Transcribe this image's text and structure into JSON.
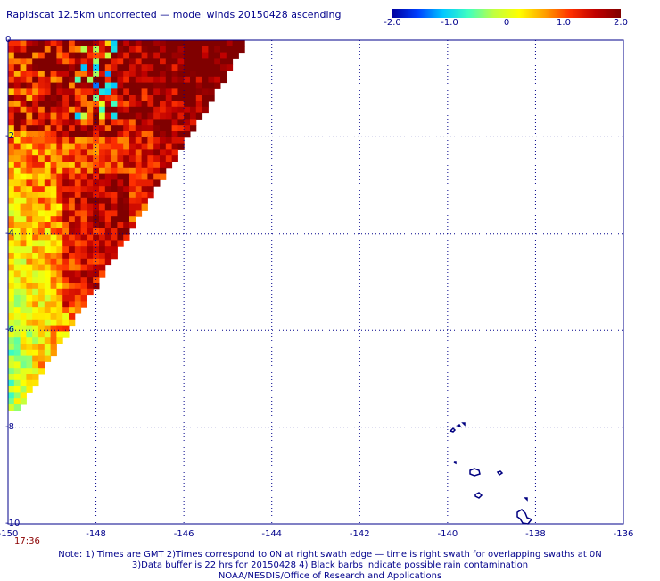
{
  "title": "Rapidscat 12.5km uncorrected — model winds 20150428 ascending",
  "colorbar": {
    "ticks": [
      "-2.0",
      "-1.0",
      "0",
      "1.0",
      "2.0"
    ],
    "stops": [
      "#0000a0",
      "#0040ff",
      "#00c8ff",
      "#40ffc0",
      "#c0ff40",
      "#ffff00",
      "#ffa000",
      "#ff3000",
      "#c00000",
      "#800000"
    ]
  },
  "axes": {
    "x_ticks": [
      "-150",
      "-148",
      "-146",
      "-144",
      "-142",
      "-140",
      "-138",
      "-136"
    ],
    "y_ticks": [
      "0",
      "-2",
      "-4",
      "-6",
      "-8",
      "-10"
    ],
    "grid": true,
    "grid_style": "dotted",
    "lon_range": [
      -150,
      -136
    ],
    "lat_range": [
      -10,
      0
    ]
  },
  "swath_time": "17:36",
  "notes": [
    "Note: 1) Times are GMT 2)Times correspond to 0N at right swath edge — time is right swath for overlapping swaths at 0N",
    "3)Data buffer is 22 hrs for 20150428 4) Black barbs indicate possible rain contamination",
    "NOAA/NESDIS/Office of Research and Applications"
  ],
  "colors": {
    "text": "#00008b",
    "time": "#8b0000",
    "grid": "#00008b",
    "coast": "#000080"
  }
}
